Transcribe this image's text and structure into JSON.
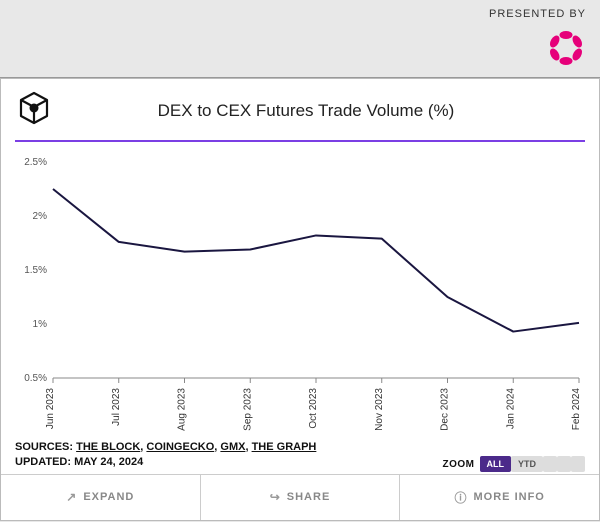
{
  "header": {
    "presented_by": "PRESENTED BY",
    "sponsor_color": "#e6007a"
  },
  "chart": {
    "type": "line",
    "title": "DEX to CEX Futures Trade Volume (%)",
    "accent_color": "#7b3fe4",
    "line_color": "#1a1640",
    "line_width": 2,
    "background_color": "#ffffff",
    "ylim": [
      0.5,
      2.5
    ],
    "ytick_step": 0.5,
    "ytick_suffix": "%",
    "x_labels": [
      "Jun 2023",
      "Jul 2023",
      "Aug 2023",
      "Sep 2023",
      "Oct 2023",
      "Nov 2023",
      "Dec 2023",
      "Jan 2024",
      "Feb 2024"
    ],
    "values": [
      2.25,
      1.76,
      1.67,
      1.69,
      1.82,
      1.79,
      1.25,
      0.93,
      1.01
    ],
    "tick_fontsize": 10
  },
  "meta": {
    "sources_label": "SOURCES:",
    "sources": [
      "THE BLOCK",
      "COINGECKO",
      "GMX",
      "THE GRAPH"
    ],
    "updated_label": "UPDATED:",
    "updated_value": "MAY 24, 2024",
    "zoom_label": "ZOOM",
    "zoom_options": [
      "ALL",
      "YTD"
    ],
    "zoom_active": "ALL"
  },
  "footer": {
    "expand": "EXPAND",
    "share": "SHARE",
    "more_info": "MORE INFO"
  }
}
